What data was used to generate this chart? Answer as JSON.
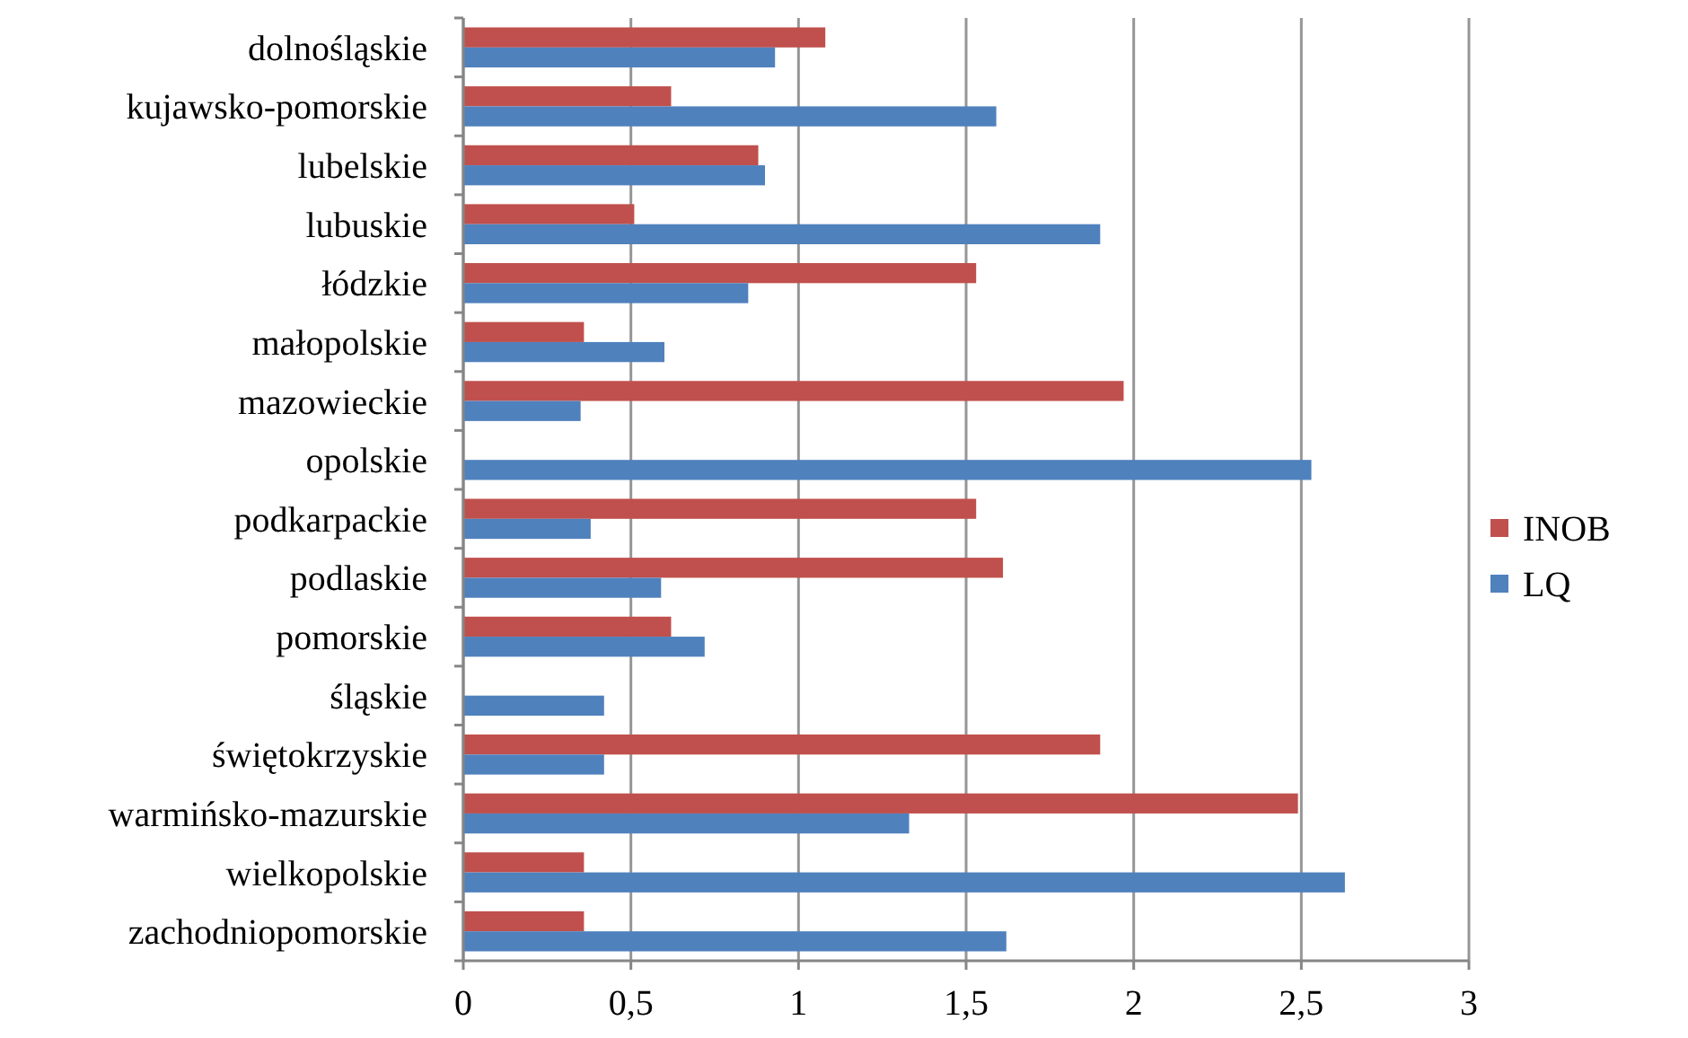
{
  "chart_data": {
    "type": "bar",
    "orientation": "horizontal",
    "categories": [
      "dolnośląskie",
      "kujawsko-pomorskie",
      "lubelskie",
      "lubuskie",
      "łódzkie",
      "małopolskie",
      "mazowieckie",
      "opolskie",
      "podkarpackie",
      "podlaskie",
      "pomorskie",
      "śląskie",
      "świętokrzyskie",
      "warmińsko-mazurskie",
      "wielkopolskie",
      "zachodniopomorskie"
    ],
    "series": [
      {
        "name": "INOB",
        "color": "#c0504d",
        "values": [
          1.08,
          0.62,
          0.88,
          0.51,
          1.53,
          0.36,
          1.97,
          null,
          1.53,
          1.61,
          0.62,
          null,
          1.9,
          2.49,
          0.36,
          0.36
        ]
      },
      {
        "name": "LQ",
        "color": "#4f81bd",
        "values": [
          0.93,
          1.59,
          0.9,
          1.9,
          0.85,
          0.6,
          0.35,
          2.53,
          0.38,
          0.59,
          0.72,
          0.42,
          0.42,
          1.33,
          2.63,
          1.62
        ]
      }
    ],
    "xlim": [
      0,
      3
    ],
    "xticks": [
      0,
      {
        "value": 0.5,
        "label": "0,5"
      },
      1,
      {
        "value": 1.5,
        "label": "1,5"
      },
      2,
      {
        "value": 2.5,
        "label": "2,5"
      },
      3
    ],
    "grid": "x",
    "legend": "right"
  }
}
